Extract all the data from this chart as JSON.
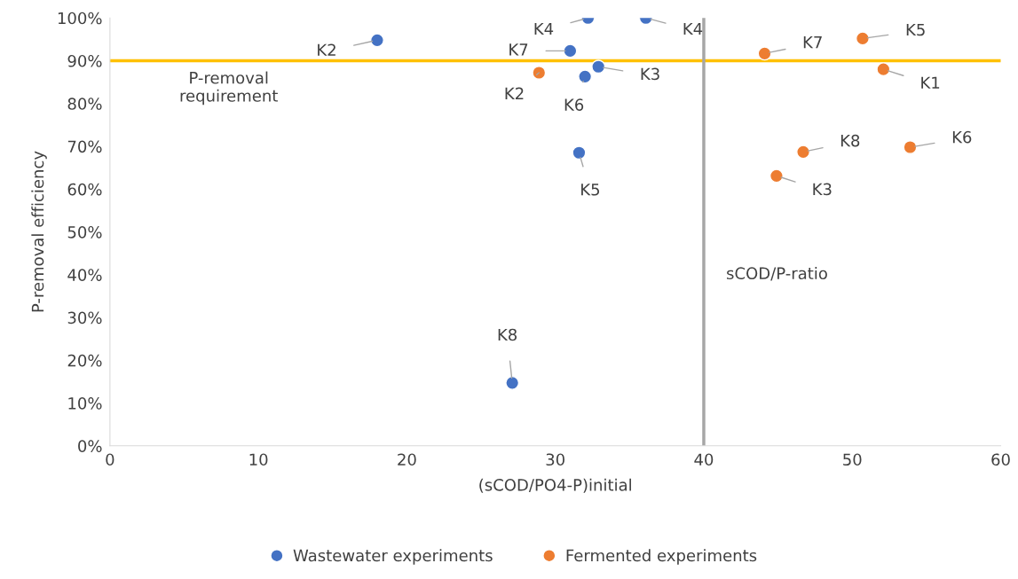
{
  "chart_data": {
    "type": "scatter",
    "xlabel": "(sCOD/PO4-P)initial",
    "ylabel": "P-removal efficiency",
    "xlim": [
      0,
      60
    ],
    "xticks": [
      0,
      10,
      20,
      30,
      40,
      50,
      60
    ],
    "ylim": [
      0,
      100
    ],
    "yticks": [
      {
        "value": 0,
        "label": "0%"
      },
      {
        "value": 10,
        "label": "10%"
      },
      {
        "value": 20,
        "label": "20%"
      },
      {
        "value": 30,
        "label": "30%"
      },
      {
        "value": 40,
        "label": "40%"
      },
      {
        "value": 50,
        "label": "50%"
      },
      {
        "value": 60,
        "label": "60%"
      },
      {
        "value": 70,
        "label": "70%"
      },
      {
        "value": 80,
        "label": "80%"
      },
      {
        "value": 90,
        "label": "90%"
      },
      {
        "value": 100,
        "label": "100%"
      }
    ],
    "series": [
      {
        "name": "Wastewater experiments",
        "color": "#4472c4",
        "x": [
          18.0,
          32.2,
          36.1,
          31.0,
          32.9,
          32.0,
          31.6,
          27.1
        ],
        "values": [
          94.8,
          100,
          100,
          92.3,
          88.6,
          86.3,
          68.5,
          14.7
        ]
      },
      {
        "name": "Fermented experiments",
        "color": "#ed7d31",
        "x": [
          28.9,
          44.1,
          50.7,
          52.1,
          46.7,
          53.9,
          44.9
        ],
        "values": [
          87.2,
          91.7,
          95.2,
          88.0,
          68.7,
          69.8,
          63.1
        ]
      }
    ],
    "ref_lines": [
      {
        "axis": "y",
        "value": 90,
        "label": "P-removal\nrequirement",
        "color": "#ffc000"
      },
      {
        "axis": "x",
        "value": 40,
        "label": "sCOD/P-ratio",
        "color": "#a6a6a6"
      }
    ],
    "annotations": [
      {
        "text": "K2",
        "x": 18.0,
        "y": 94.8
      },
      {
        "text": "K4",
        "x": 32.2,
        "y": 100
      },
      {
        "text": "K4",
        "x": 36.1,
        "y": 100
      },
      {
        "text": "K7",
        "x": 31.0,
        "y": 92.3
      },
      {
        "text": "K3",
        "x": 32.9,
        "y": 88.6
      },
      {
        "text": "K6",
        "x": 32.0,
        "y": 86.3
      },
      {
        "text": "K5",
        "x": 31.6,
        "y": 68.5
      },
      {
        "text": "K8",
        "x": 27.1,
        "y": 14.7
      },
      {
        "text": "K2",
        "x": 28.9,
        "y": 87.2
      },
      {
        "text": "K7",
        "x": 44.1,
        "y": 91.7
      },
      {
        "text": "K5",
        "x": 50.7,
        "y": 95.2
      },
      {
        "text": "K1",
        "x": 52.1,
        "y": 88.0
      },
      {
        "text": "K8",
        "x": 46.7,
        "y": 68.7
      },
      {
        "text": "K6",
        "x": 53.9,
        "y": 69.8
      },
      {
        "text": "K3",
        "x": 44.9,
        "y": 63.1
      }
    ],
    "marker": "circle",
    "grid": false,
    "legend": "bottom"
  }
}
